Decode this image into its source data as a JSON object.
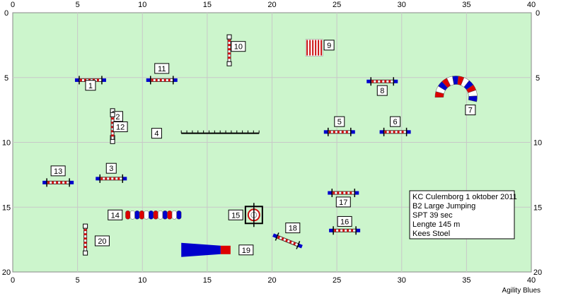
{
  "course": {
    "field": {
      "width_m": 40,
      "height_m": 20
    },
    "colors": {
      "field": "#ccf5cc",
      "grid": "#c8c8c8",
      "pole_red": "#cc1111",
      "stand_blue": "#0000cc",
      "pole_dark": "#333333",
      "tunnel_red": "#dd0000",
      "tunnel_blue": "#0000cc"
    },
    "axes": {
      "x_ticks": [
        "0",
        "5",
        "10",
        "15",
        "20",
        "25",
        "30",
        "35",
        "40"
      ],
      "y_ticks": [
        "0",
        "5",
        "10",
        "15",
        "20"
      ]
    },
    "info": {
      "line1": "KC Culemborg 1 oktober 2011",
      "line2": "B2 Large Jumping",
      "line3": "SPT 39 sec",
      "line4": "Lengte 145 m",
      "line5": "Kees Stoel"
    },
    "brand": "Agility Blues",
    "obstacles": [
      {
        "n": "1",
        "type": "jump",
        "x": 6.0,
        "y": 5.2,
        "angle": 0,
        "lx": 6.0,
        "ly": 5.6
      },
      {
        "n": "2",
        "type": "jump",
        "x": 7.7,
        "y": 8.6,
        "angle": 90,
        "lx": 8.1,
        "ly": 8.0
      },
      {
        "n": "3",
        "type": "jump",
        "x": 7.6,
        "y": 12.8,
        "angle": 0,
        "lx": 7.6,
        "ly": 12.0
      },
      {
        "n": "4",
        "type": "dogwalk",
        "x": 13.0,
        "y": 9.3,
        "x2": 19.0,
        "lx": 11.1,
        "ly": 9.3
      },
      {
        "n": "5",
        "type": "jump",
        "x": 25.2,
        "y": 9.2,
        "angle": 0,
        "lx": 25.2,
        "ly": 8.4
      },
      {
        "n": "6",
        "type": "jump",
        "x": 29.5,
        "y": 9.2,
        "angle": 0,
        "lx": 29.5,
        "ly": 8.4
      },
      {
        "n": "7",
        "type": "tunnel_curved",
        "cx": 34.2,
        "cy": 6.5,
        "r": 1.3,
        "lx": 35.3,
        "ly": 7.5
      },
      {
        "n": "8",
        "type": "jump",
        "x": 28.5,
        "y": 5.3,
        "angle": 0,
        "lx": 28.5,
        "ly": 6.0
      },
      {
        "n": "9",
        "type": "weave",
        "x": 22.6,
        "y": 2.7,
        "lx": 24.4,
        "ly": 2.5
      },
      {
        "n": "10",
        "type": "jump",
        "x": 16.7,
        "y": 2.9,
        "angle": 90,
        "lx": 17.4,
        "ly": 2.6
      },
      {
        "n": "11",
        "type": "jump",
        "x": 11.5,
        "y": 5.2,
        "angle": 0,
        "lx": 11.5,
        "ly": 4.3
      },
      {
        "n": "12",
        "type": "jump",
        "x": 7.7,
        "y": 8.9,
        "angle": 90,
        "lx": 8.3,
        "ly": 8.8
      },
      {
        "n": "13",
        "type": "jump",
        "x": 3.5,
        "y": 13.1,
        "angle": 0,
        "lx": 3.5,
        "ly": 12.2
      },
      {
        "n": "14",
        "type": "tunnel_straight",
        "x": 8.7,
        "y": 15.6,
        "x2": 13.0,
        "lx": 7.9,
        "ly": 15.6
      },
      {
        "n": "15",
        "type": "tyre",
        "x": 18.6,
        "y": 15.6,
        "lx": 17.2,
        "ly": 15.6
      },
      {
        "n": "16",
        "type": "jump",
        "x": 25.6,
        "y": 16.8,
        "angle": 0,
        "lx": 25.6,
        "ly": 16.1
      },
      {
        "n": "17",
        "type": "jump",
        "x": 25.5,
        "y": 13.9,
        "angle": 0,
        "lx": 25.5,
        "ly": 14.6
      },
      {
        "n": "18",
        "type": "jump",
        "x": 21.2,
        "y": 17.6,
        "angle": 22,
        "lx": 21.6,
        "ly": 16.6
      },
      {
        "n": "19",
        "type": "chute",
        "x": 13.0,
        "y": 18.3,
        "x2": 16.8,
        "lx": 18.0,
        "ly": 18.3
      },
      {
        "n": "20",
        "type": "jump",
        "x": 5.6,
        "y": 17.5,
        "angle": 90,
        "lx": 6.9,
        "ly": 17.6
      }
    ]
  }
}
